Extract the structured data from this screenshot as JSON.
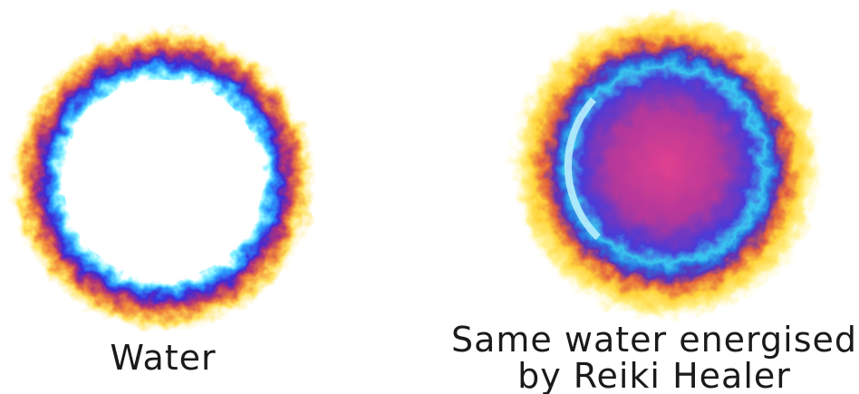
{
  "captions": {
    "left": "Water",
    "right_line1": "Same water energised",
    "right_line2": "by Reiki Healer"
  }
}
